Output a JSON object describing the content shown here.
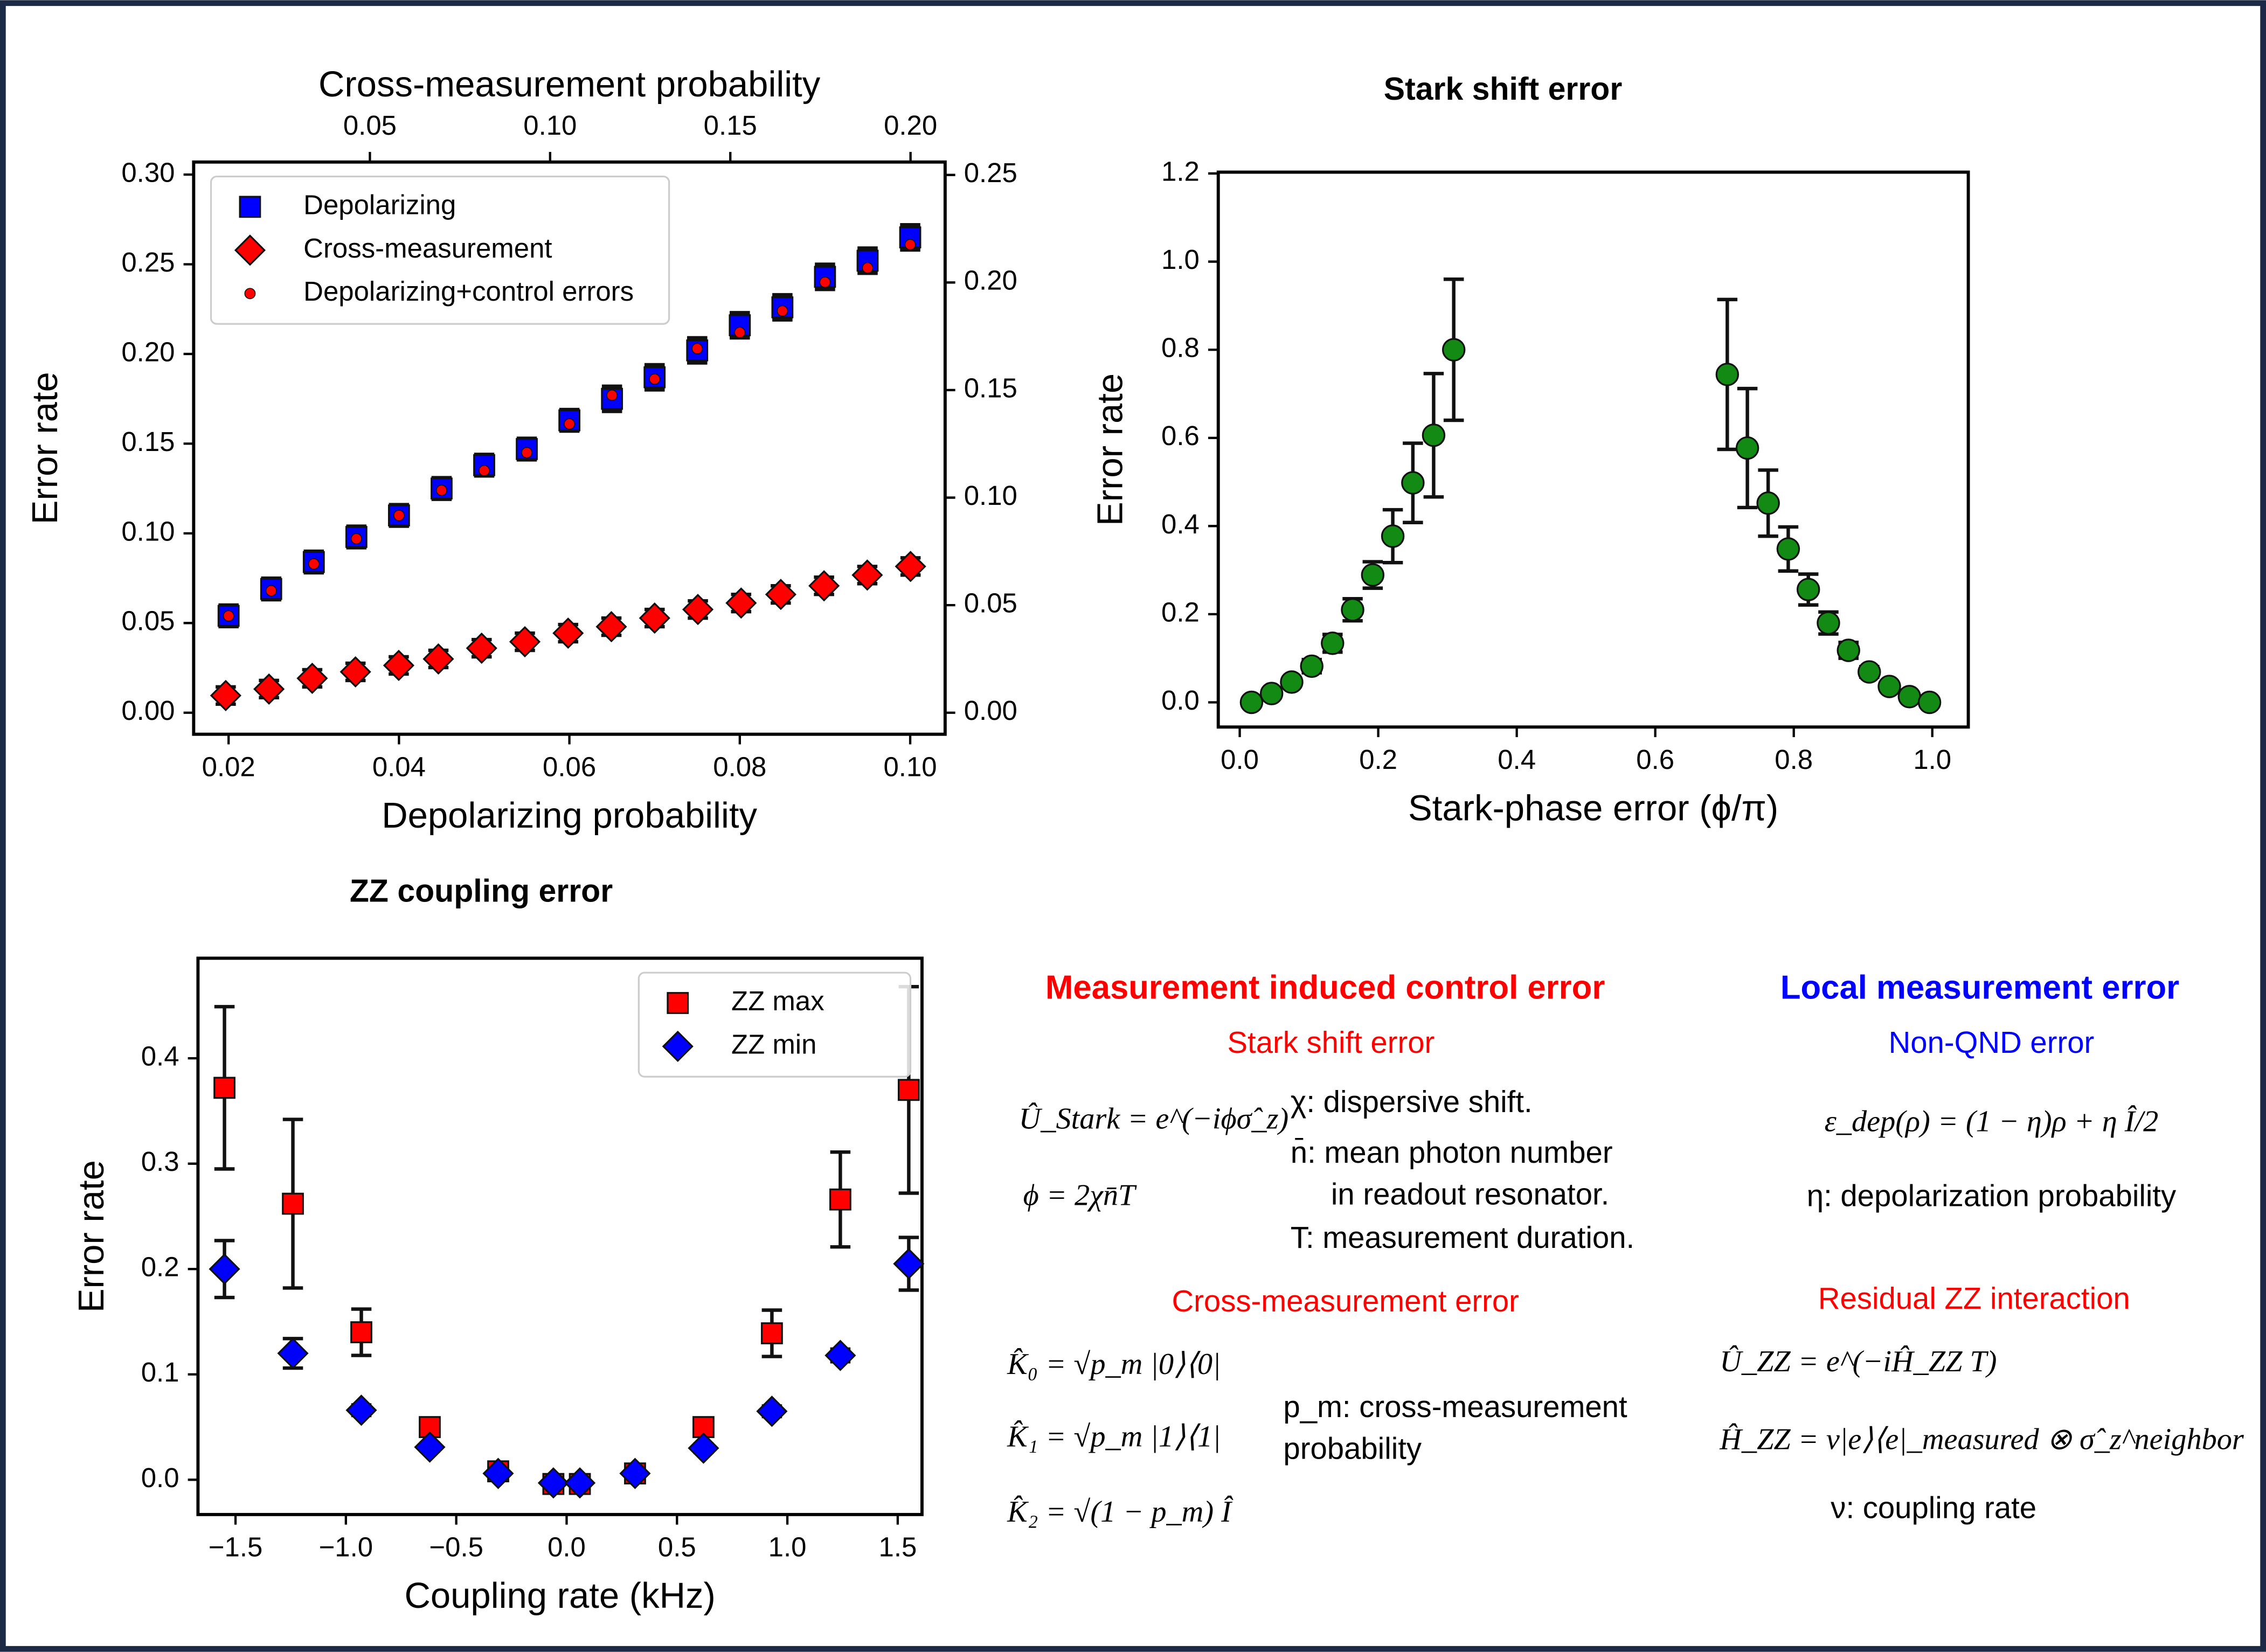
{
  "chart_data": [
    {
      "type": "scatter",
      "xlabel": "Depolarizing probability",
      "xlabel_color": "#0000ff",
      "x2label": "Cross-measurement probability",
      "x2label_color": "#cc0000",
      "ylabel": "Error rate",
      "ytick_color": "#0000ff",
      "y2tick_color": "#cc0000",
      "xlim": [
        0.0159,
        0.1041
      ],
      "xticks": [
        0.02,
        0.04,
        0.06,
        0.08,
        {
          "value": 0.1,
          "label": "0.10"
        }
      ],
      "x2lim": [
        0.0011,
        0.2096
      ],
      "x2ticks": [
        0.05,
        {
          "value": 0.1,
          "label": "0.10"
        },
        0.15,
        {
          "value": 0.2,
          "label": "0.20"
        }
      ],
      "ylim": [
        -0.012,
        0.307
      ],
      "yticks": [
        {
          "value": 0,
          "label": "0.00"
        },
        0.05,
        {
          "value": 0.1,
          "label": "0.10"
        },
        0.15,
        {
          "value": 0.2,
          "label": "0.20"
        },
        0.25,
        {
          "value": 0.3,
          "label": "0.30"
        }
      ],
      "y2lim": [
        -0.01,
        0.256
      ],
      "y2ticks": [
        {
          "value": 0,
          "label": "0.00"
        },
        0.05,
        {
          "value": 0.1,
          "label": "0.10"
        },
        0.15,
        {
          "value": 0.2,
          "label": "0.20"
        },
        0.25
      ],
      "legend": "upper left",
      "series": [
        {
          "name": "Depolarizing",
          "color": "#0000ff",
          "marker": "square",
          "x": [
            0.02,
            0.025,
            0.03,
            0.035,
            0.04,
            0.045,
            0.05,
            0.055,
            0.06,
            0.065,
            0.07,
            0.075,
            0.08,
            0.085,
            0.09,
            0.095,
            0.1
          ],
          "values": [
            0.054,
            0.069,
            0.084,
            0.098,
            0.11,
            0.125,
            0.138,
            0.147,
            0.163,
            0.175,
            0.187,
            0.202,
            0.216,
            0.226,
            0.243,
            0.252,
            0.265
          ],
          "errors": [
            0.006,
            0.006,
            0.006,
            0.006,
            0.006,
            0.006,
            0.006,
            0.006,
            0.006,
            0.007,
            0.007,
            0.007,
            0.007,
            0.007,
            0.007,
            0.007,
            0.007
          ]
        },
        {
          "name": "Cross-measurement",
          "color": "#ff0000",
          "marker": "diamond",
          "xaxis": "x2",
          "axis": "y2",
          "x": [
            0.01,
            0.022,
            0.034,
            0.046,
            0.058,
            0.069,
            0.081,
            0.093,
            0.105,
            0.117,
            0.129,
            0.141,
            0.153,
            0.164,
            0.176,
            0.188,
            0.2
          ],
          "values": [
            0.008,
            0.011,
            0.016,
            0.019,
            0.022,
            0.025,
            0.03,
            0.033,
            0.037,
            0.04,
            0.044,
            0.048,
            0.051,
            0.055,
            0.059,
            0.064,
            0.068
          ],
          "errors": [
            0.004,
            0.004,
            0.004,
            0.004,
            0.004,
            0.004,
            0.004,
            0.004,
            0.004,
            0.004,
            0.004,
            0.004,
            0.004,
            0.004,
            0.004,
            0.004,
            0.004
          ]
        },
        {
          "name": "Depolarizing+control errors",
          "color": "#ff0000",
          "marker": "dot",
          "x": [
            0.02,
            0.025,
            0.03,
            0.035,
            0.04,
            0.045,
            0.05,
            0.055,
            0.06,
            0.065,
            0.07,
            0.075,
            0.08,
            0.085,
            0.09,
            0.095,
            0.1
          ],
          "values": [
            0.054,
            0.068,
            0.083,
            0.097,
            0.11,
            0.124,
            0.135,
            0.145,
            0.161,
            0.177,
            0.186,
            0.203,
            0.212,
            0.224,
            0.24,
            0.248,
            0.261
          ]
        }
      ]
    },
    {
      "type": "scatter",
      "title": "Stark shift error",
      "xlabel": "Stark-phase error (ϕ/π)",
      "ylabel": "Error rate",
      "xlim": [
        -0.031,
        1.052
      ],
      "xticks": [
        {
          "value": 0,
          "label": "0.0"
        },
        0.2,
        0.4,
        0.6,
        0.8,
        {
          "value": 1,
          "label": "1.0"
        }
      ],
      "ylim": [
        -0.056,
        1.203
      ],
      "yticks": [
        {
          "value": 0,
          "label": "0.0"
        },
        0.2,
        0.4,
        0.6,
        0.8,
        {
          "value": 1,
          "label": "1.0"
        },
        1.2
      ],
      "series": [
        {
          "color": "#138a13",
          "marker": "circle",
          "x": [
            0.017,
            0.046,
            0.075,
            0.104,
            0.134,
            0.163,
            0.192,
            0.221,
            0.25,
            0.28,
            0.309,
            0.704,
            0.733,
            0.763,
            0.792,
            0.821,
            0.85,
            0.879,
            0.909,
            0.938,
            0.967,
            0.996
          ],
          "values": [
            0,
            0.02,
            0.046,
            0.082,
            0.134,
            0.21,
            0.289,
            0.377,
            0.498,
            0.606,
            0.8,
            0.744,
            0.577,
            0.452,
            0.348,
            0.256,
            0.18,
            0.118,
            0.069,
            0.036,
            0.013,
            0
          ],
          "errors": [
            0.005,
            0.01,
            0.01,
            0.015,
            0.02,
            0.025,
            0.03,
            0.06,
            0.09,
            0.14,
            0.16,
            0.17,
            0.135,
            0.075,
            0.05,
            0.035,
            0.025,
            0.018,
            0.012,
            0.008,
            0.005,
            0.003
          ]
        }
      ]
    },
    {
      "type": "scatter",
      "title": "ZZ coupling error",
      "xlabel": "Coupling rate (kHz)",
      "ylabel": "Error rate",
      "xlim": [
        -1.67,
        1.61
      ],
      "xticks": [
        {
          "value": -1.5,
          "label": "−1.5"
        },
        {
          "value": -1,
          "label": "−1.0"
        },
        {
          "value": -0.5,
          "label": "−0.5"
        },
        {
          "value": 0,
          "label": "0.0"
        },
        0.5,
        {
          "value": 1,
          "label": "1.0"
        },
        1.5
      ],
      "ylim": [
        -0.033,
        0.495
      ],
      "yticks": [
        {
          "value": 0,
          "label": "0.0"
        },
        0.1,
        0.2,
        0.3,
        0.4
      ],
      "legend": "upper right",
      "series": [
        {
          "name": "ZZ max",
          "color": "#ff0000",
          "marker": "square",
          "x": [
            -1.55,
            -1.24,
            -0.93,
            -0.62,
            -0.31,
            -0.06,
            0.06,
            0.31,
            0.62,
            0.93,
            1.24,
            1.55
          ],
          "values": [
            0.372,
            0.262,
            0.14,
            0.05,
            0.008,
            -0.004,
            -0.004,
            0.006,
            0.05,
            0.139,
            0.266,
            0.37
          ],
          "errors": [
            0.077,
            0.08,
            0.022,
            0.005,
            0.004,
            0.003,
            0.003,
            0.004,
            0.005,
            0.022,
            0.045,
            0.098
          ]
        },
        {
          "name": "ZZ min",
          "color": "#0000ff",
          "marker": "diamond",
          "x": [
            -1.55,
            -1.24,
            -0.93,
            -0.62,
            -0.31,
            -0.06,
            0.06,
            0.31,
            0.62,
            0.93,
            1.24,
            1.55
          ],
          "values": [
            0.2,
            0.12,
            0.066,
            0.031,
            0.006,
            -0.003,
            -0.003,
            0.006,
            0.03,
            0.065,
            0.118,
            0.205
          ],
          "errors": [
            0.027,
            0.014,
            0.005,
            0.004,
            0.003,
            0.002,
            0.002,
            0.003,
            0.004,
            0.005,
            0.006,
            0.025
          ]
        }
      ]
    }
  ],
  "notes": {
    "control": {
      "heading": "Measurement induced control error",
      "stark": {
        "heading": "Stark shift error",
        "equations": [
          "Û_Stark = e^(−iϕσ̂_z)",
          "ϕ = 2χn̄T"
        ],
        "definitions": [
          "χ: dispersive shift.",
          "n̄: mean photon number",
          "in readout resonator.",
          "T: measurement duration."
        ]
      },
      "cross": {
        "heading": "Cross-measurement error",
        "equations": [
          "K̂₀ = √p_m |0⟩⟨0|",
          "K̂₁ = √p_m |1⟩⟨1|",
          "K̂₂ = √(1 − p_m) Î"
        ],
        "definitions": [
          "p_m: cross-measurement",
          "probability"
        ]
      }
    },
    "local": {
      "heading": "Local measurement error",
      "nonqnd": {
        "heading": "Non-QND error",
        "equations": [
          "ε_dep(ρ) = (1 − η)ρ + η Î/2"
        ],
        "definitions": [
          "η: depolarization probability"
        ]
      },
      "zz": {
        "heading": "Residual ZZ interaction",
        "equations": [
          "Û_ZZ = e^(−iĤ_ZZ T)",
          "Ĥ_ZZ = ν|e⟩⟨e|_measured ⊗ σ̂_z^neighbor"
        ],
        "definitions": [
          "ν: coupling rate"
        ]
      }
    }
  }
}
